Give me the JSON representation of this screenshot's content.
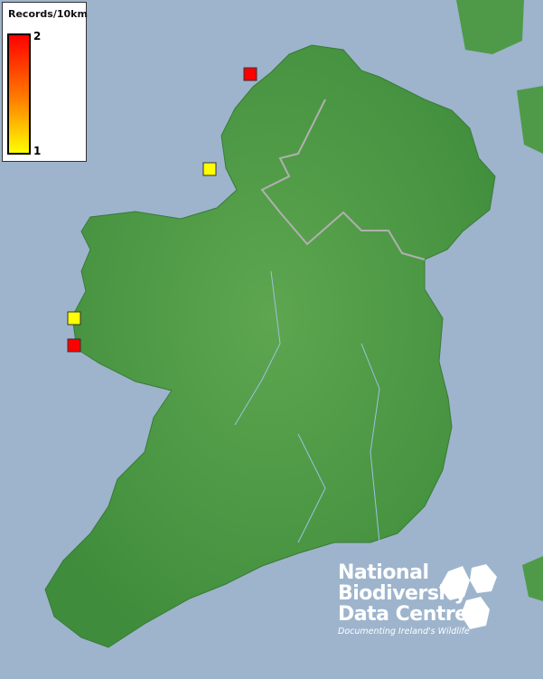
{
  "legend": {
    "title": "Records/10km",
    "max_label": "2",
    "min_label": "1",
    "colors": {
      "max": "#ff0000",
      "min": "#ffff00"
    }
  },
  "map": {
    "sea_color": "#9db4cc",
    "land_color": "#4f9a48",
    "records": [
      {
        "value": 2,
        "color": "#ff0000"
      },
      {
        "value": 1,
        "color": "#ffff00"
      },
      {
        "value": 1,
        "color": "#ffff00"
      },
      {
        "value": 2,
        "color": "#ff0000"
      }
    ]
  },
  "logo": {
    "line1": "National",
    "line2": "Biodiversity",
    "line3": "Data Centre",
    "tagline": "Documenting Ireland's Wildlife"
  }
}
